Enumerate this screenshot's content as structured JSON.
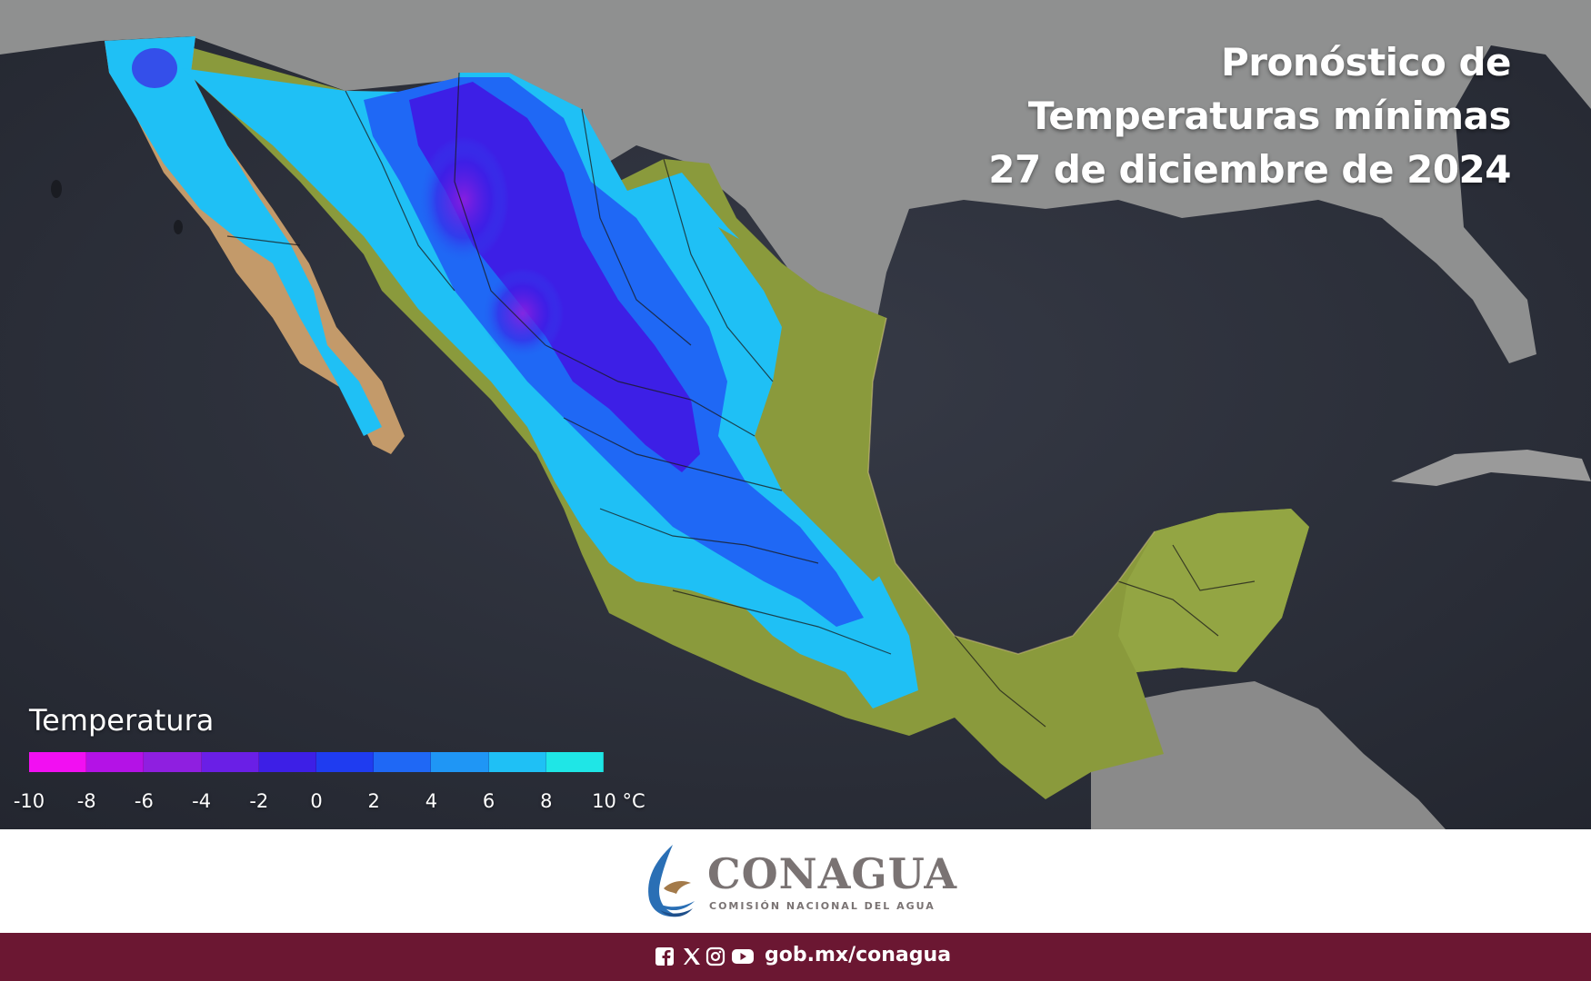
{
  "title": {
    "line1": "Pronóstico de",
    "line2": "Temperaturas mínimas",
    "line3": "27 de diciembre de 2024"
  },
  "legend": {
    "title": "Temperatura",
    "ticks": [
      "-10",
      "-8",
      "-6",
      "-4",
      "-2",
      "0",
      "2",
      "4",
      "6",
      "8",
      "10 °C"
    ],
    "colors": [
      "#f20ff2",
      "#b412e6",
      "#8f1fe0",
      "#6a1fe6",
      "#3d1fe6",
      "#1f3cf0",
      "#1f68f5",
      "#1f96f5",
      "#1fc0f5",
      "#1fe6e6"
    ]
  },
  "map": {
    "sea_color": "#2f3340",
    "land_color": "#8c8c8c",
    "warm_color": "#8a9a3c"
  },
  "branding": {
    "name": "CONAGUA",
    "subtitle": "COMISIÓN NACIONAL DEL AGUA"
  },
  "footer": {
    "social_icons": [
      "facebook-icon",
      "x-icon",
      "instagram-icon",
      "youtube-icon"
    ],
    "url": "gob.mx/conagua"
  }
}
